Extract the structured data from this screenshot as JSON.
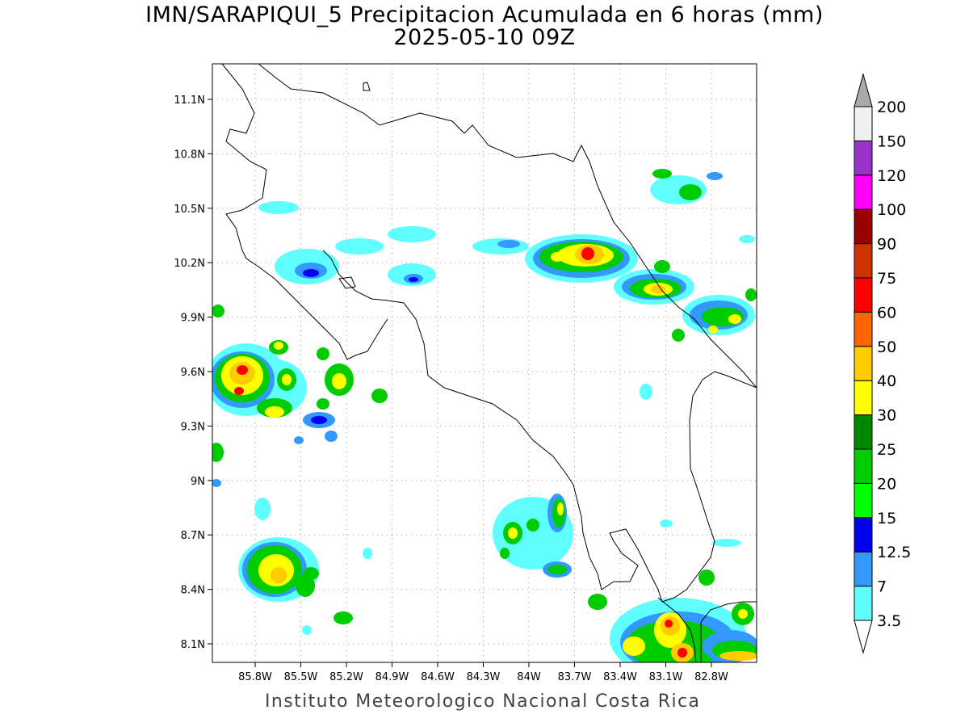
{
  "title": {
    "line1": "IMN/SARAPIQUI_5 Precipitacion Acumulada en 6 horas (mm)",
    "line2": "2025-05-10 09Z"
  },
  "credit": "Instituto Meteorologico Nacional Costa Rica",
  "map": {
    "lon_range": [
      -86.0,
      -83.0
    ],
    "lat_range": [
      8.0,
      11.0
    ],
    "grid_lines": true,
    "lon_ticks": [
      {
        "value": -85.8,
        "label": "85.8W"
      },
      {
        "value": -85.5,
        "label": "85.5W"
      },
      {
        "value": -85.2,
        "label": "85.2W"
      },
      {
        "value": -84.9,
        "label": "84.9W"
      },
      {
        "value": -84.6,
        "label": "84.6W"
      },
      {
        "value": -84.3,
        "label": "84.3W"
      },
      {
        "value": -84.0,
        "label": "84W"
      },
      {
        "value": -83.7,
        "label": "83.7W"
      },
      {
        "value": -83.4,
        "label": "83.4W"
      },
      {
        "value": -83.1,
        "label": "83.1W"
      },
      {
        "value": -82.8,
        "label": "82.8W"
      }
    ],
    "lat_ticks": [
      {
        "value": 8.1,
        "label": "8.1N"
      },
      {
        "value": 8.4,
        "label": "8.4N"
      },
      {
        "value": 8.7,
        "label": "8.7N"
      },
      {
        "value": 9.0,
        "label": "9N"
      },
      {
        "value": 9.3,
        "label": "9.3N"
      },
      {
        "value": 9.6,
        "label": "9.6N"
      },
      {
        "value": 9.9,
        "label": "9.9N"
      },
      {
        "value": 10.2,
        "label": "10.2N"
      },
      {
        "value": 10.5,
        "label": "10.5N"
      },
      {
        "value": 10.8,
        "label": "10.8N"
      },
      {
        "value": 11.1,
        "label": "11.1N"
      }
    ]
  },
  "legend": {
    "bins": [
      {
        "label": "3.5",
        "color": "#5fffff"
      },
      {
        "label": "7",
        "color": "#3399ff"
      },
      {
        "label": "12.5",
        "color": "#0000ee"
      },
      {
        "label": "15",
        "color": "#00ff00"
      },
      {
        "label": "20",
        "color": "#00cc00"
      },
      {
        "label": "25",
        "color": "#008800"
      },
      {
        "label": "30",
        "color": "#ffff00"
      },
      {
        "label": "40",
        "color": "#ffcc00"
      },
      {
        "label": "50",
        "color": "#ff6600"
      },
      {
        "label": "60",
        "color": "#ff0000"
      },
      {
        "label": "75",
        "color": "#cc3300"
      },
      {
        "label": "90",
        "color": "#990000"
      },
      {
        "label": "100",
        "color": "#ff00ff"
      },
      {
        "label": "120",
        "color": "#9933cc"
      },
      {
        "label": "150",
        "color": "#f0f0f0"
      },
      {
        "label": "200",
        "color": "#aaaaaa"
      }
    ],
    "min_arrow_color": "#ffffff",
    "max_arrow_color": "#aaaaaa"
  }
}
